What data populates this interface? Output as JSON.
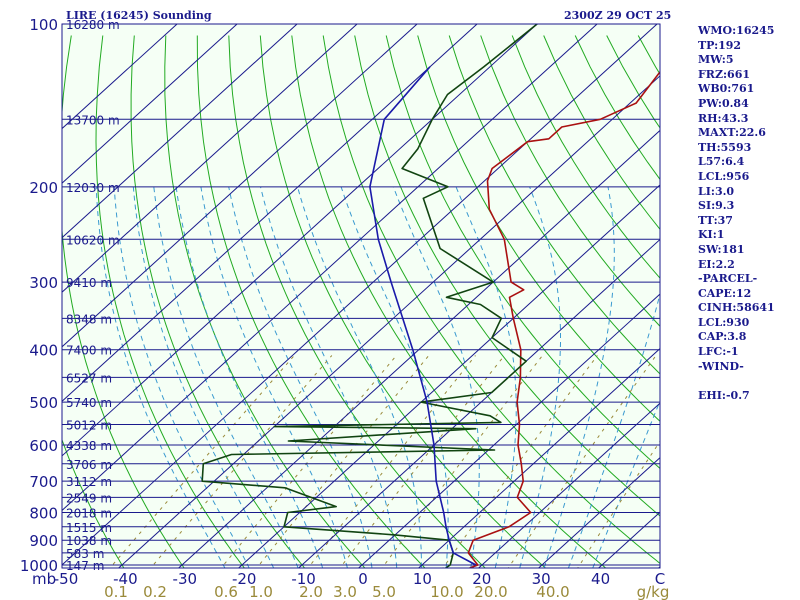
{
  "header": {
    "title": "LIRE (16245) Sounding",
    "time": "2300Z 29 OCT 25"
  },
  "stats": [
    "WMO:16245",
    "TP:192",
    "MW:5",
    "FRZ:661",
    "WB0:761",
    "PW:0.84",
    "RH:43.3",
    "MAXT:22.6",
    "TH:5593",
    "L57:6.4",
    "LCL:956",
    "LI:3.0",
    "SI:9.3",
    "TT:37",
    "KI:1",
    "SW:181",
    "EI:2.2",
    "-PARCEL-",
    "CAPE:12",
    "CINH:58641",
    "LCL:930",
    "CAP:3.8",
    "LFC:-1",
    "-WIND-",
    "",
    "EHI:-0.7"
  ],
  "colors": {
    "temperature": "#aa1111",
    "dewpoint": "#114411",
    "parcel": "#1a1aaa",
    "isobar": "#1a1a8c",
    "isotherm": "#1a1a8c",
    "dry_adiabat": "#22aa22",
    "moist_adiabat": "#3a9ad0",
    "mixing_ratio": "#9a8a3a",
    "background": "#f5fff5",
    "text": "#1a1a8c"
  },
  "chart_data": {
    "type": "line",
    "title": "LIRE (16245) Sounding",
    "skew_t": true,
    "pressure_unit": "mb",
    "pressure_range": [
      1000,
      100
    ],
    "temperature_range": [
      -50,
      50
    ],
    "mixing_ratio_unit": "g/kg",
    "pressure_labels": [
      "100",
      "200",
      "300",
      "400",
      "500",
      "600",
      "700",
      "800",
      "900",
      "1000"
    ],
    "pressure_ticks": [
      100,
      200,
      300,
      400,
      500,
      600,
      700,
      800,
      900,
      1000
    ],
    "height_labels": [
      {
        "p": 100,
        "text": "16280 m"
      },
      {
        "p": 150,
        "text": "13700 m"
      },
      {
        "p": 200,
        "text": "12030 m"
      },
      {
        "p": 250,
        "text": "10620 m"
      },
      {
        "p": 300,
        "text": "9410 m"
      },
      {
        "p": 350,
        "text": "8348 m"
      },
      {
        "p": 400,
        "text": "7400 m"
      },
      {
        "p": 450,
        "text": "6527 m"
      },
      {
        "p": 500,
        "text": "5740 m"
      },
      {
        "p": 550,
        "text": "5012 m"
      },
      {
        "p": 600,
        "text": "4338 m"
      },
      {
        "p": 650,
        "text": "3706 m"
      },
      {
        "p": 700,
        "text": "3112 m"
      },
      {
        "p": 750,
        "text": "2549 m"
      },
      {
        "p": 800,
        "text": "2018 m"
      },
      {
        "p": 850,
        "text": "1515 m"
      },
      {
        "p": 900,
        "text": "1038 m"
      },
      {
        "p": 950,
        "text": "583 m"
      },
      {
        "p": 1000,
        "text": "147 m"
      }
    ],
    "temperature_tick_labels": [
      "-50",
      "-40",
      "-30",
      "-20",
      "-10",
      "0",
      "10",
      "20",
      "30",
      "40",
      "C"
    ],
    "mixing_ratio_labels": [
      "0.1",
      "0.2",
      "0.6",
      "1.0",
      "2.0",
      "3.0",
      "5.0",
      "10.0",
      "20.0",
      "40.0",
      "g/kg"
    ],
    "series": [
      {
        "name": "temperature",
        "points": [
          [
            1013,
            18.5
          ],
          [
            1000,
            19.3
          ],
          [
            950,
            15.5
          ],
          [
            900,
            14.0
          ],
          [
            850,
            17.5
          ],
          [
            800,
            18.5
          ],
          [
            750,
            13.5
          ],
          [
            700,
            11.5
          ],
          [
            650,
            8.0
          ],
          [
            600,
            4.0
          ],
          [
            550,
            0.5
          ],
          [
            500,
            -4.0
          ],
          [
            450,
            -8.0
          ],
          [
            400,
            -13.0
          ],
          [
            350,
            -20.0
          ],
          [
            320,
            -24.5
          ],
          [
            310,
            -23.5
          ],
          [
            300,
            -27.0
          ],
          [
            250,
            -36.0
          ],
          [
            220,
            -44.0
          ],
          [
            195,
            -49.5
          ],
          [
            185,
            -51.0
          ],
          [
            165,
            -50.0
          ],
          [
            163,
            -47.0
          ],
          [
            155,
            -47.0
          ],
          [
            150,
            -42.0
          ],
          [
            140,
            -39.0
          ],
          [
            120,
            -41.0
          ],
          [
            100,
            -40.0
          ]
        ]
      },
      {
        "name": "dewpoint",
        "points": [
          [
            1013,
            14.5
          ],
          [
            1000,
            14.7
          ],
          [
            950,
            13.0
          ],
          [
            900,
            10.0
          ],
          [
            880,
            0.0
          ],
          [
            850,
            -20.0
          ],
          [
            800,
            -22.0
          ],
          [
            780,
            -15.0
          ],
          [
            720,
            -27.0
          ],
          [
            700,
            -42.0
          ],
          [
            650,
            -45.0
          ],
          [
            625,
            -42.0
          ],
          [
            613,
            1.0
          ],
          [
            590,
            -35.0
          ],
          [
            560,
            -6.0
          ],
          [
            555,
            -40.0
          ],
          [
            545,
            -3.0
          ],
          [
            530,
            -6.0
          ],
          [
            500,
            -20.0
          ],
          [
            480,
            -10.0
          ],
          [
            420,
            -10.0
          ],
          [
            380,
            -20.0
          ],
          [
            350,
            -22.0
          ],
          [
            330,
            -28.0
          ],
          [
            320,
            -35.0
          ],
          [
            300,
            -30.0
          ],
          [
            260,
            -45.0
          ],
          [
            210,
            -57.0
          ],
          [
            200,
            -55.0
          ],
          [
            185,
            -66.0
          ],
          [
            170,
            -67.0
          ],
          [
            150,
            -70.0
          ],
          [
            135,
            -72.0
          ],
          [
            120,
            -71.0
          ],
          [
            100,
            -70.0
          ]
        ]
      },
      {
        "name": "parcel",
        "points": [
          [
            1000,
            19.0
          ],
          [
            950,
            13.0
          ],
          [
            900,
            10.0
          ],
          [
            850,
            7.0
          ],
          [
            800,
            4.0
          ],
          [
            700,
            -3.0
          ],
          [
            600,
            -10.0
          ],
          [
            500,
            -19.0
          ],
          [
            400,
            -31.0
          ],
          [
            300,
            -47.0
          ],
          [
            250,
            -57.0
          ],
          [
            200,
            -68.0
          ],
          [
            150,
            -78.0
          ],
          [
            120,
            -80.0
          ]
        ]
      }
    ]
  }
}
